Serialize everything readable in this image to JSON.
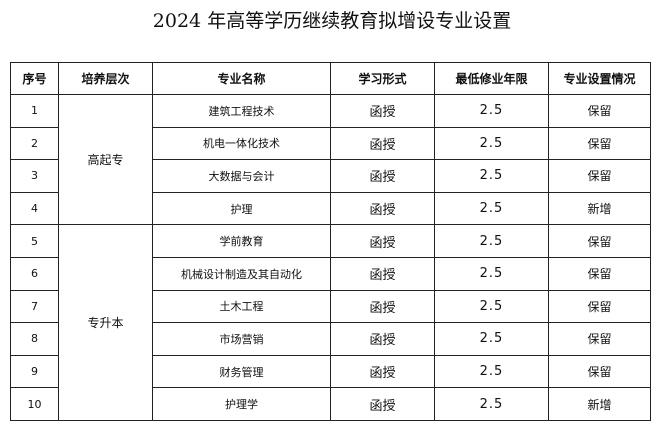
{
  "title": "2024 年高等学历继续教育拟增设专业设置",
  "headers": {
    "no": "序号",
    "level": "培养层次",
    "major": "专业名称",
    "form": "学习形式",
    "years": "最低修业年限",
    "status": "专业设置情况"
  },
  "levels": [
    "高起专",
    "专升本"
  ],
  "rows": [
    {
      "no": "1",
      "major": "建筑工程技术",
      "form": "函授",
      "years": "2.5",
      "status": "保留"
    },
    {
      "no": "2",
      "major": "机电一体化技术",
      "form": "函授",
      "years": "2.5",
      "status": "保留"
    },
    {
      "no": "3",
      "major": "大数据与会计",
      "form": "函授",
      "years": "2.5",
      "status": "保留"
    },
    {
      "no": "4",
      "major": "护理",
      "form": "函授",
      "years": "2.5",
      "status": "新增"
    },
    {
      "no": "5",
      "major": "学前教育",
      "form": "函授",
      "years": "2.5",
      "status": "保留"
    },
    {
      "no": "6",
      "major": "机械设计制造及其自动化",
      "form": "函授",
      "years": "2.5",
      "status": "保留"
    },
    {
      "no": "7",
      "major": "土木工程",
      "form": "函授",
      "years": "2.5",
      "status": "保留"
    },
    {
      "no": "8",
      "major": "市场营销",
      "form": "函授",
      "years": "2.5",
      "status": "保留"
    },
    {
      "no": "9",
      "major": "财务管理",
      "form": "函授",
      "years": "2.5",
      "status": "保留"
    },
    {
      "no": "10",
      "major": "护理学",
      "form": "函授",
      "years": "2.5",
      "status": "新增"
    }
  ]
}
